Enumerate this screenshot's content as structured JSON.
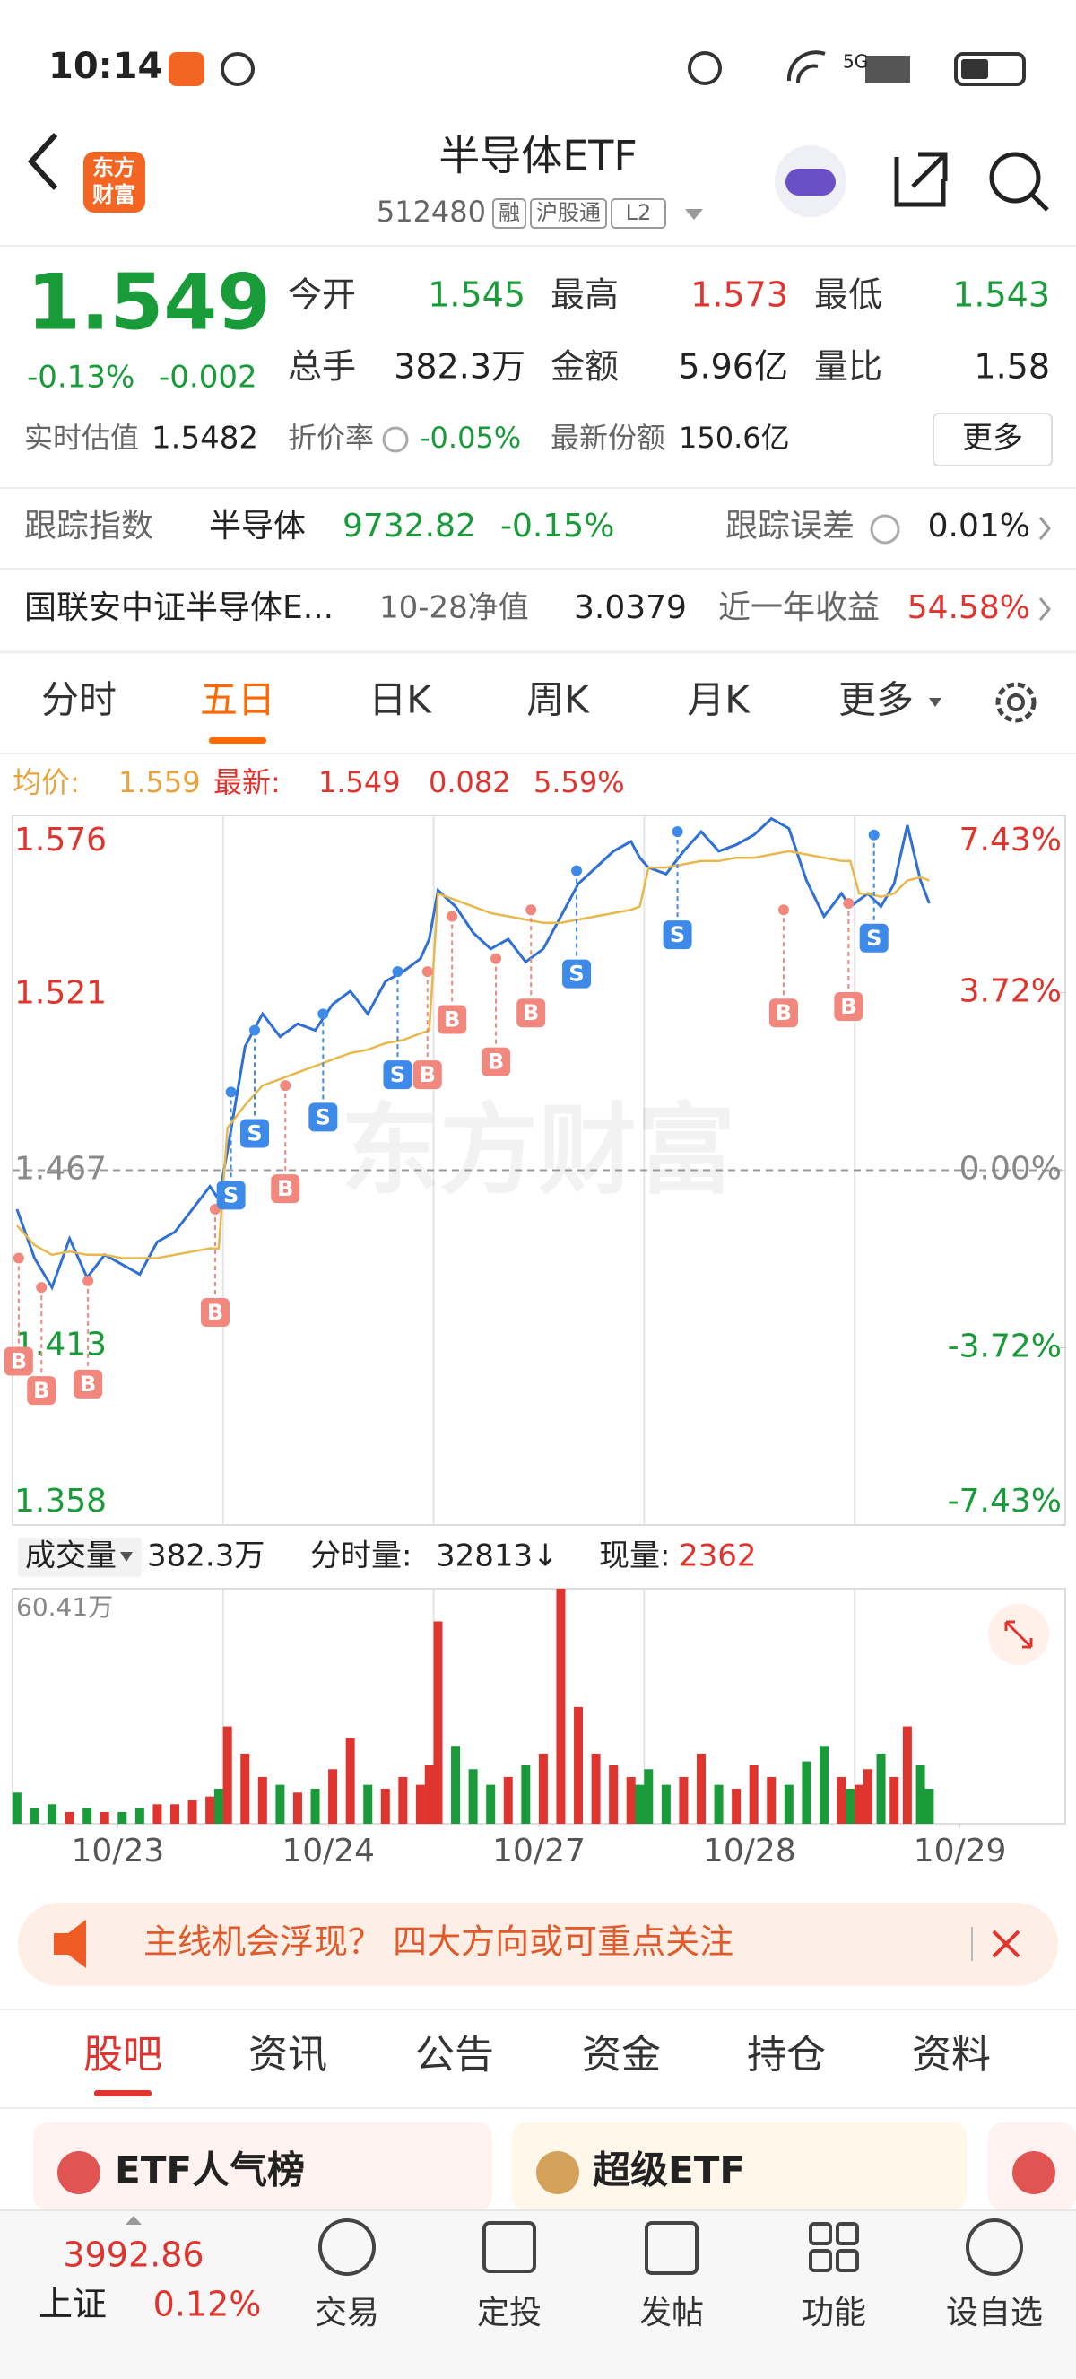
{
  "status_bar": {
    "time": "10:14",
    "network": "5G"
  },
  "header": {
    "title": "半导体ETF",
    "code": "512480",
    "tags": [
      "融",
      "沪股通",
      "L2"
    ],
    "logo": [
      "东方",
      "财富"
    ]
  },
  "quote": {
    "price": "1.549",
    "change_pct": "-0.13%",
    "change": "-0.002",
    "fields": [
      {
        "label": "今开",
        "value": "1.545"
      },
      {
        "label": "最高",
        "value": "1.573"
      },
      {
        "label": "最低",
        "value": "1.543"
      },
      {
        "label": "总手",
        "value": "382.3万"
      },
      {
        "label": "金额",
        "value": "5.96亿"
      },
      {
        "label": "量比",
        "value": "1.58"
      }
    ],
    "iopv_label": "实时估值",
    "iopv": "1.5482",
    "premium_label": "折价率",
    "premium": "-0.05%",
    "shares_label": "最新份额",
    "shares": "150.6亿",
    "more": "更多"
  },
  "tracking": {
    "label": "跟踪指数",
    "index": "半导体",
    "index_value": "9732.82",
    "index_change": "-0.15%",
    "error_label": "跟踪误差",
    "error": "0.01%"
  },
  "fund": {
    "name": "国联安中证半导体E...",
    "nav_label": "10-28净值",
    "nav": "3.0379",
    "return_label": "近一年收益",
    "return": "54.58%"
  },
  "chart_tabs": [
    "分时",
    "五日",
    "日K",
    "周K",
    "月K",
    "更多"
  ],
  "chart_info": {
    "avg_label": "均价:",
    "avg": "1.559",
    "last_label": "最新:",
    "last": "1.549",
    "change": "0.082",
    "change_pct": "5.59%"
  },
  "chart_data": [
    {
      "type": "line",
      "watermark": "东方财富",
      "x": [
        5,
        25,
        45,
        65,
        85,
        105,
        125,
        145,
        165,
        185,
        205,
        225,
        235,
        245,
        265,
        285,
        305,
        325,
        345,
        365,
        385,
        405,
        425,
        445,
        465,
        475,
        485,
        505,
        525,
        545,
        565,
        585,
        605,
        625,
        645,
        665,
        685,
        705,
        715,
        725,
        745,
        765,
        785,
        805,
        825,
        845,
        865,
        885,
        905,
        925,
        945,
        955,
        965,
        975,
        990,
        1005,
        1020,
        1035,
        1045
      ],
      "xlim": [
        0,
        1200
      ],
      "ylim": [
        1.358,
        1.576
      ],
      "yticks": [
        1.358,
        1.413,
        1.467,
        1.521,
        1.576
      ],
      "y2lim": [
        -7.43,
        7.43
      ],
      "y2ticks": [
        {
          "value": -7.43,
          "label": "-7.43%"
        },
        {
          "value": -3.72,
          "label": "-3.72%"
        },
        {
          "value": 0,
          "label": "0.00%"
        },
        {
          "value": 3.72,
          "label": "3.72%"
        },
        {
          "value": 7.43,
          "label": "7.43%"
        }
      ],
      "series": [
        {
          "color": "#2f6fd6",
          "values": [
            1.455,
            1.44,
            1.431,
            1.446,
            1.434,
            1.441,
            1.438,
            1.435,
            1.445,
            1.448,
            1.455,
            1.462,
            1.458,
            1.473,
            1.505,
            1.515,
            1.508,
            1.512,
            1.51,
            1.518,
            1.522,
            1.515,
            1.525,
            1.528,
            1.532,
            1.538,
            1.553,
            1.548,
            1.54,
            1.535,
            1.538,
            1.531,
            1.535,
            1.545,
            1.555,
            1.56,
            1.565,
            1.568,
            1.563,
            1.56,
            1.558,
            1.565,
            1.571,
            1.565,
            1.567,
            1.57,
            1.575,
            1.572,
            1.556,
            1.545,
            1.552,
            1.548,
            1.55,
            1.552,
            1.548,
            1.555,
            1.573,
            1.556,
            1.549
          ]
        },
        {
          "color": "#e8b84a",
          "values": [
            1.45,
            1.444,
            1.441,
            1.442,
            1.441,
            1.441,
            1.44,
            1.44,
            1.44,
            1.441,
            1.442,
            1.443,
            1.443,
            1.48,
            1.487,
            1.493,
            1.495,
            1.497,
            1.499,
            1.501,
            1.503,
            1.504,
            1.506,
            1.507,
            1.509,
            1.51,
            1.552,
            1.55,
            1.548,
            1.546,
            1.545,
            1.544,
            1.543,
            1.543,
            1.544,
            1.545,
            1.546,
            1.547,
            1.548,
            1.56,
            1.56,
            1.561,
            1.562,
            1.562,
            1.563,
            1.563,
            1.564,
            1.565,
            1.564,
            1.563,
            1.562,
            1.562,
            1.552,
            1.552,
            1.551,
            1.552,
            1.556,
            1.557,
            1.556
          ]
        }
      ],
      "markers": [
        {
          "label": "B",
          "x": 7,
          "price": 1.44
        },
        {
          "label": "B",
          "x": 33,
          "price": 1.431
        },
        {
          "label": "B",
          "x": 86,
          "price": 1.433
        },
        {
          "label": "B",
          "x": 231,
          "price": 1.455
        },
        {
          "label": "B",
          "x": 311,
          "price": 1.493
        },
        {
          "label": "S",
          "x": 249,
          "price": 1.491
        },
        {
          "label": "S",
          "x": 276,
          "price": 1.51
        },
        {
          "label": "S",
          "x": 354,
          "price": 1.515
        },
        {
          "label": "S",
          "x": 439,
          "price": 1.528
        },
        {
          "label": "B",
          "x": 473,
          "price": 1.528
        },
        {
          "label": "B",
          "x": 501,
          "price": 1.545
        },
        {
          "label": "B",
          "x": 551,
          "price": 1.532
        },
        {
          "label": "B",
          "x": 591,
          "price": 1.547
        },
        {
          "label": "S",
          "x": 643,
          "price": 1.559
        },
        {
          "label": "S",
          "x": 758,
          "price": 1.571
        },
        {
          "label": "B",
          "x": 879,
          "price": 1.547
        },
        {
          "label": "B",
          "x": 953,
          "price": 1.549
        },
        {
          "label": "S",
          "x": 982,
          "price": 1.57
        }
      ]
    },
    {
      "type": "bar",
      "vol_label": "成交量",
      "vol": "382.3万",
      "minute_vol_label": "分时量:",
      "minute_vol": "32813↓",
      "cur_vol_label": "现量:",
      "cur_vol": "2362",
      "x": [
        5,
        25,
        45,
        65,
        85,
        105,
        125,
        145,
        165,
        185,
        205,
        225,
        235,
        245,
        265,
        285,
        305,
        325,
        345,
        365,
        385,
        405,
        425,
        445,
        465,
        475,
        485,
        505,
        525,
        545,
        565,
        585,
        605,
        625,
        645,
        665,
        685,
        705,
        715,
        725,
        745,
        765,
        785,
        805,
        825,
        845,
        865,
        885,
        905,
        925,
        945,
        955,
        965,
        975,
        990,
        1005,
        1020,
        1035,
        1045
      ],
      "values": [
        8,
        4,
        5,
        3,
        4,
        3,
        3,
        4,
        5,
        5,
        6,
        7,
        9,
        25,
        18,
        12,
        10,
        8,
        9,
        14,
        22,
        10,
        9,
        12,
        10,
        15,
        52,
        20,
        14,
        10,
        12,
        15,
        18,
        60.41,
        30,
        18,
        15,
        12,
        10,
        14,
        10,
        12,
        18,
        10,
        9,
        15,
        12,
        10,
        16,
        20,
        12,
        9,
        10,
        14,
        18,
        12,
        25,
        15,
        9
      ],
      "up_color": "#e0342f",
      "down_color": "#1a9b3a",
      "xlim": [
        0,
        1200
      ],
      "ylim": [
        0,
        60.41
      ],
      "yticks": [
        {
          "value": 60.41,
          "label": "60.41万"
        }
      ],
      "xticks": [
        {
          "value": 120,
          "label": "10/23"
        },
        {
          "value": 360,
          "label": "10/24"
        },
        {
          "value": 600,
          "label": "10/27"
        },
        {
          "value": 840,
          "label": "10/28"
        },
        {
          "value": 1080,
          "label": "10/29"
        }
      ]
    }
  ],
  "banner": "主线机会浮现？ 四大方向或可重点关注",
  "bottom_tabs": [
    "股吧",
    "资讯",
    "公告",
    "资金",
    "持仓",
    "资料"
  ],
  "cards": [
    "ETF人气榜",
    "超级ETF"
  ],
  "nav": {
    "index_value": "3992.86",
    "index_name": "上证",
    "index_change": "0.12%",
    "items": [
      "交易",
      "定投",
      "发帖",
      "功能",
      "设自选"
    ]
  }
}
